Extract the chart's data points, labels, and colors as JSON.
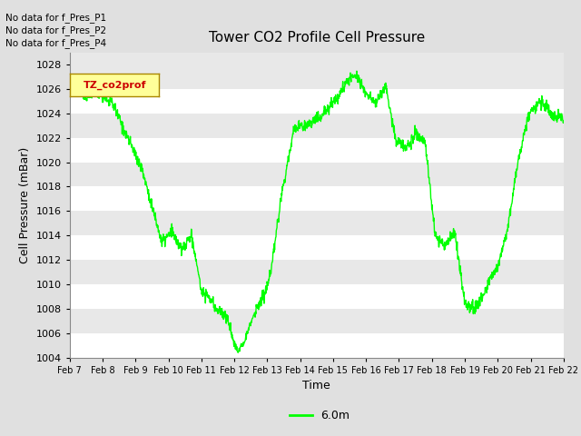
{
  "title": "Tower CO2 Profile Cell Pressure",
  "xlabel": "Time",
  "ylabel": "Cell Pressure (mBar)",
  "ylim": [
    1004,
    1029
  ],
  "yticks": [
    1004,
    1006,
    1008,
    1010,
    1012,
    1014,
    1016,
    1018,
    1020,
    1022,
    1024,
    1026,
    1028
  ],
  "xtick_labels": [
    "Feb 7",
    "Feb 8",
    "Feb 9",
    "Feb 10",
    "Feb 11",
    "Feb 12",
    "Feb 13",
    "Feb 14",
    "Feb 15",
    "Feb 16",
    "Feb 17",
    "Feb 18",
    "Feb 19",
    "Feb 20",
    "Feb 21",
    "Feb 22"
  ],
  "line_color": "#00FF00",
  "line_label": "6.0m",
  "fig_bg_color": "#E0E0E0",
  "plot_bg_color": "#E8E8E8",
  "grid_color_light": "#F0F0F0",
  "grid_color_dark": "#D8D8D8",
  "no_data_labels": [
    "No data for f_Pres_P1",
    "No data for f_Pres_P2",
    "No data for f_Pres_P4"
  ],
  "legend_label": "TZ_co2prof",
  "legend_text_color": "#CC0000",
  "legend_bg_color": "#FFFF99"
}
